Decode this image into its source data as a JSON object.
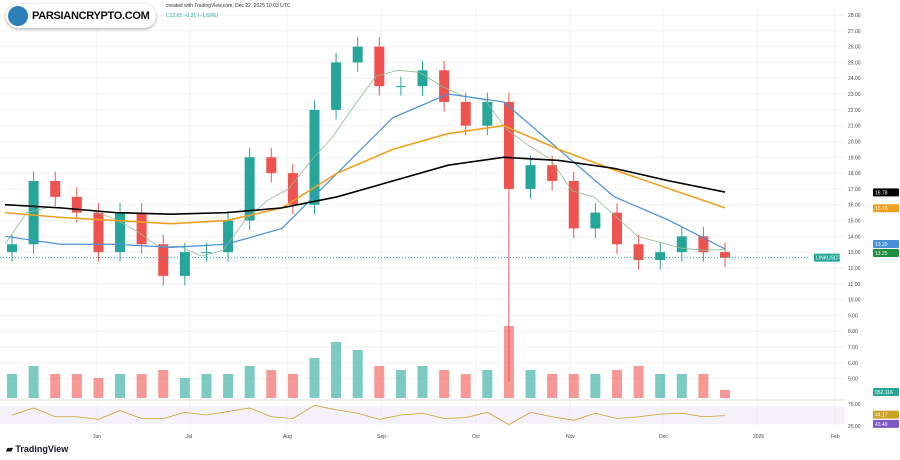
{
  "header": {
    "attribution": "created with TradingView.com, Dec 22, 2025 10:03 UTC",
    "ohlc_change": "C12.65 −0.21 (−1.69%)"
  },
  "logo": {
    "text": "PARSIANCRYPTO.COM"
  },
  "footer": {
    "brand": "TradingView"
  },
  "colors": {
    "up": "#26a69a",
    "down": "#ef5350",
    "ma200": "#000000",
    "ma100": "#f0a020",
    "ma50": "#4a90d9",
    "ma20": "#8fbc8f",
    "rsi": "#f2c94c",
    "rsi_ma": "#7e57c2"
  },
  "chart_data": {
    "type": "candlestick",
    "x_ticks": [
      "Jun",
      "Jul",
      "Aug",
      "Sep",
      "Oct",
      "Nov",
      "Dec",
      "2026",
      "Feb"
    ],
    "y_ticks": [
      "28.00",
      "27.00",
      "26.00",
      "25.00",
      "24.00",
      "23.00",
      "22.00",
      "21.00",
      "20.00",
      "19.00",
      "18.00",
      "17.00",
      "16.00",
      "15.00",
      "14.00",
      "13.00",
      "12.00",
      "11.00",
      "10.00",
      "9.00",
      "8.00",
      "7.00",
      "6.00",
      "5.00"
    ],
    "ylim": [
      4.5,
      28.3
    ],
    "closes": [
      13.5,
      17.5,
      16.5,
      15.5,
      13,
      15.5,
      13.5,
      11.5,
      13,
      13,
      15,
      19,
      18,
      16,
      22,
      25,
      26,
      23.5,
      23.5,
      24.5,
      22.5,
      21,
      22.5,
      17,
      18.5,
      17.5,
      14.5,
      15.5,
      13.5,
      12.5,
      13,
      14,
      13,
      12.65
    ],
    "volumes": [
      3,
      4,
      3,
      3,
      2.5,
      3,
      3,
      3.5,
      2.5,
      3,
      3,
      4,
      3.5,
      3,
      5,
      7,
      6,
      4,
      3.5,
      4,
      3.5,
      3,
      3.5,
      9,
      3.5,
      3,
      3,
      3,
      3.5,
      4,
      3,
      3,
      3,
      1
    ],
    "ma200": [
      16,
      15.8,
      15.5,
      15.4,
      15.5,
      15.8,
      16.5,
      17.5,
      18.5,
      19,
      18.8,
      18.3,
      17.5,
      16.8
    ],
    "ma100": [
      15.5,
      15.2,
      15,
      14.8,
      15,
      15.8,
      18,
      19.5,
      20.5,
      21,
      19.5,
      18.2,
      17,
      15.8
    ],
    "ma50": [
      14,
      13.5,
      13.5,
      13.3,
      13.5,
      14.5,
      18,
      21.5,
      23,
      22.5,
      19.5,
      16.5,
      15,
      13.2
    ],
    "price_labels": {
      "ma200": "16.78",
      "ma100": "15.78",
      "ma50": "13.20",
      "ma20": "13.25",
      "symbol": "LINKUSDT",
      "volume": "952.11K"
    },
    "rsi": {
      "ticks": [
        "75.00",
        "25.00"
      ],
      "value": "44.17",
      "ma": "43.40",
      "ylim": [
        25,
        75
      ]
    }
  }
}
